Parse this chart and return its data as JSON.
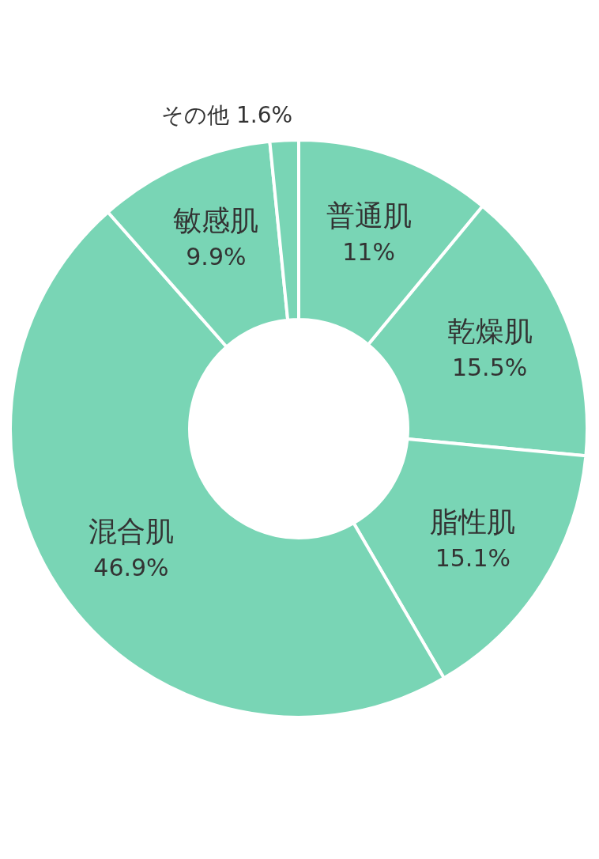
{
  "chart_data": {
    "type": "donut",
    "categories": [
      "普通肌",
      "乾燥肌",
      "脂性肌",
      "混合肌",
      "敏感肌",
      "その他"
    ],
    "values": [
      11,
      15.5,
      15.1,
      46.9,
      9.9,
      1.6
    ],
    "value_labels": [
      "11%",
      "15.5%",
      "15.1%",
      "46.9%",
      "9.9%",
      "1.6%"
    ],
    "colors": [
      "#79d5b5",
      "#79d5b5",
      "#79d5b5",
      "#79d5b5",
      "#79d5b5",
      "#79d5b5"
    ]
  }
}
